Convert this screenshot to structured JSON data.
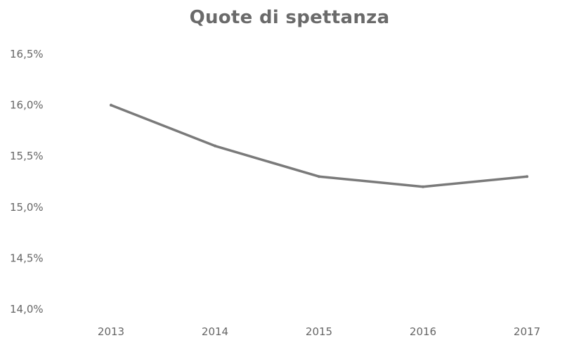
{
  "chart_data": {
    "type": "line",
    "title": "Quote di spettanza",
    "x": [
      "2013",
      "2014",
      "2015",
      "2016",
      "2017"
    ],
    "series": [
      {
        "values": [
          16.0,
          15.6,
          15.3,
          15.2,
          15.3
        ]
      }
    ],
    "y_ticks": [
      "16,5%",
      "16,0%",
      "15,5%",
      "15,0%",
      "14,5%",
      "14,0%"
    ],
    "ylim": [
      14.0,
      16.5
    ],
    "xlabel": "",
    "ylabel": "",
    "grid": false,
    "colors": {
      "line": "#7a7a7a",
      "text": "#666666"
    }
  }
}
